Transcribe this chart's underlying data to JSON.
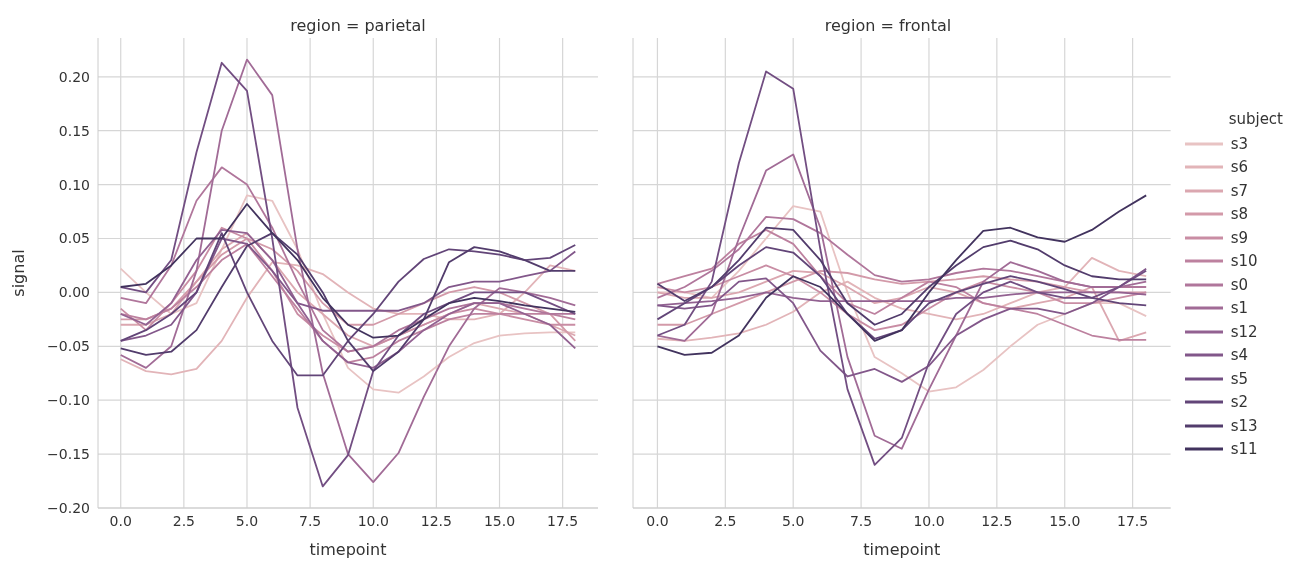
{
  "chart_data": [
    {
      "type": "line",
      "title": "region = parietal",
      "xlabel": "timepoint",
      "ylabel": "signal",
      "grid": true,
      "xlim": [
        -0.9,
        18.9
      ],
      "ylim": [
        -0.2,
        0.236
      ],
      "xticks": [
        {
          "value": 0,
          "label": "0.0"
        },
        2.5,
        {
          "value": 5,
          "label": "5.0"
        },
        7.5,
        {
          "value": 10,
          "label": "10.0"
        },
        12.5,
        {
          "value": 15,
          "label": "15.0"
        },
        17.5
      ],
      "yticks": [
        {
          "value": -0.2,
          "label": "−0.20"
        },
        {
          "value": -0.15,
          "label": "−0.15"
        },
        {
          "value": -0.1,
          "label": "−0.10"
        },
        {
          "value": -0.05,
          "label": "−0.05"
        },
        {
          "value": 0,
          "label": "0.00"
        },
        {
          "value": 0.05,
          "label": "0.05"
        },
        {
          "value": 0.1,
          "label": "0.10"
        },
        {
          "value": 0.15,
          "label": "0.15"
        },
        {
          "value": 0.2,
          "label": "0.20"
        }
      ],
      "x": [
        0,
        1,
        2,
        3,
        4,
        5,
        6,
        7,
        8,
        9,
        10,
        11,
        12,
        13,
        14,
        15,
        16,
        17,
        18
      ],
      "series": [
        {
          "color": "#e8c3c3",
          "values": [
            0.022,
            0.0,
            -0.02,
            -0.01,
            0.04,
            0.09,
            0.085,
            0.04,
            -0.02,
            -0.07,
            -0.09,
            -0.093,
            -0.078,
            -0.06,
            -0.047,
            -0.04,
            -0.038,
            -0.037,
            -0.037
          ]
        },
        {
          "color": "#e2b4b8",
          "values": [
            -0.062,
            -0.073,
            -0.076,
            -0.071,
            -0.045,
            -0.005,
            0.028,
            0.025,
            0.017,
            0.0,
            -0.015,
            -0.02,
            -0.02,
            -0.025,
            -0.025,
            -0.02,
            0.0,
            0.025,
            0.02
          ]
        },
        {
          "color": "#dba7b0",
          "values": [
            -0.03,
            -0.03,
            -0.02,
            0.01,
            0.04,
            0.055,
            0.03,
            0.0,
            -0.02,
            -0.04,
            -0.05,
            -0.04,
            -0.03,
            -0.02,
            -0.01,
            -0.015,
            -0.02,
            -0.03,
            -0.04
          ]
        },
        {
          "color": "#d39aa9",
          "values": [
            -0.025,
            -0.025,
            -0.015,
            0.01,
            0.035,
            0.05,
            0.04,
            0.02,
            -0.01,
            -0.03,
            -0.03,
            -0.02,
            -0.01,
            0.0,
            0.005,
            0.0,
            -0.01,
            -0.02,
            -0.045
          ]
        },
        {
          "color": "#c98da4",
          "values": [
            -0.015,
            -0.035,
            -0.01,
            0.02,
            0.06,
            0.05,
            0.02,
            -0.02,
            -0.04,
            -0.055,
            -0.05,
            -0.04,
            -0.03,
            -0.02,
            -0.015,
            -0.02,
            -0.025,
            -0.03,
            -0.03
          ]
        },
        {
          "color": "#bd819f",
          "values": [
            -0.02,
            -0.025,
            -0.015,
            0.005,
            0.03,
            0.045,
            0.015,
            -0.015,
            -0.045,
            -0.065,
            -0.06,
            -0.045,
            -0.035,
            -0.025,
            -0.02,
            -0.02,
            -0.02,
            -0.02,
            -0.025
          ]
        },
        {
          "color": "#b0769b",
          "values": [
            -0.005,
            -0.01,
            0.025,
            0.085,
            0.116,
            0.1,
            0.06,
            0.01,
            -0.035,
            -0.055,
            -0.05,
            -0.035,
            -0.025,
            -0.015,
            -0.01,
            -0.01,
            -0.015,
            -0.02,
            -0.02
          ]
        },
        {
          "color": "#a16b96",
          "values": [
            -0.058,
            -0.07,
            -0.05,
            0.02,
            0.15,
            0.216,
            0.183,
            0.04,
            -0.075,
            -0.15,
            -0.176,
            -0.149,
            -0.097,
            -0.05,
            -0.015,
            0.004,
            0.0,
            -0.005,
            -0.012
          ]
        },
        {
          "color": "#926191",
          "values": [
            -0.02,
            -0.03,
            -0.01,
            0.03,
            0.058,
            0.055,
            0.03,
            -0.01,
            -0.045,
            -0.065,
            -0.07,
            -0.055,
            -0.035,
            -0.02,
            -0.01,
            -0.01,
            -0.02,
            -0.03,
            -0.052
          ]
        },
        {
          "color": "#82578a",
          "values": [
            -0.045,
            -0.04,
            -0.03,
            0.0,
            0.05,
            0.045,
            0.02,
            -0.01,
            -0.017,
            -0.017,
            -0.017,
            -0.017,
            -0.01,
            0.005,
            0.01,
            0.01,
            0.015,
            0.02,
            0.038
          ]
        },
        {
          "color": "#724e82",
          "values": [
            0.005,
            0.0,
            0.03,
            0.13,
            0.213,
            0.187,
            0.05,
            -0.107,
            -0.18,
            -0.151,
            -0.073,
            -0.04,
            -0.02,
            -0.01,
            0.0,
            0.0,
            0.0,
            -0.01,
            -0.02
          ]
        },
        {
          "color": "#624578",
          "values": [
            -0.045,
            -0.035,
            -0.02,
            0.0,
            0.055,
            0.0,
            -0.045,
            -0.077,
            -0.077,
            -0.045,
            -0.02,
            0.01,
            0.031,
            0.04,
            0.038,
            0.035,
            0.03,
            0.032,
            0.044
          ]
        },
        {
          "color": "#523c6c",
          "values": [
            -0.052,
            -0.058,
            -0.055,
            -0.035,
            0.005,
            0.043,
            0.055,
            0.035,
            0.0,
            -0.045,
            -0.073,
            -0.055,
            -0.025,
            0.028,
            0.042,
            0.038,
            0.03,
            0.02,
            0.02
          ]
        },
        {
          "color": "#42335e",
          "values": [
            0.005,
            0.008,
            0.025,
            0.05,
            0.05,
            0.082,
            0.055,
            0.03,
            -0.005,
            -0.03,
            -0.042,
            -0.04,
            -0.025,
            -0.01,
            -0.005,
            -0.008,
            -0.012,
            -0.015,
            -0.018
          ]
        }
      ]
    },
    {
      "type": "line",
      "title": "region = frontal",
      "xlabel": "timepoint",
      "grid": true,
      "tick_labels": "x",
      "legend": "right",
      "legend_title": "subject",
      "xlim": [
        -0.9,
        18.9
      ],
      "ylim": [
        -0.2,
        0.236
      ],
      "xticks": [
        {
          "value": 0,
          "label": "0.0"
        },
        2.5,
        {
          "value": 5,
          "label": "5.0"
        },
        7.5,
        {
          "value": 10,
          "label": "10.0"
        },
        12.5,
        {
          "value": 15,
          "label": "15.0"
        },
        17.5
      ],
      "yticks": [
        -0.2,
        -0.15,
        -0.1,
        -0.05,
        0,
        0.05,
        0.1,
        0.15,
        0.2
      ],
      "x": [
        0,
        1,
        2,
        3,
        4,
        5,
        6,
        7,
        8,
        9,
        10,
        11,
        12,
        13,
        14,
        15,
        16,
        17,
        18
      ],
      "series": [
        {
          "name": "s3",
          "color": "#e8c3c3",
          "values": [
            0.0,
            0.0,
            -0.005,
            0.02,
            0.05,
            0.08,
            0.075,
            0.0,
            -0.06,
            -0.075,
            -0.092,
            -0.088,
            -0.072,
            -0.05,
            -0.03,
            -0.02,
            -0.01,
            -0.01,
            -0.022
          ]
        },
        {
          "name": "s6",
          "color": "#e2b4b8",
          "values": [
            -0.043,
            -0.045,
            -0.042,
            -0.038,
            -0.03,
            -0.018,
            0.0,
            0.01,
            -0.005,
            -0.015,
            -0.02,
            -0.025,
            -0.02,
            -0.01,
            0.0,
            0.005,
            0.032,
            0.02,
            0.015
          ]
        },
        {
          "name": "s7",
          "color": "#dba7b0",
          "values": [
            0.0,
            -0.005,
            -0.005,
            0.0,
            0.01,
            0.02,
            0.018,
            0.005,
            -0.01,
            -0.005,
            0.005,
            0.0,
            -0.01,
            -0.015,
            -0.01,
            -0.005,
            0.005,
            -0.045,
            -0.037
          ]
        },
        {
          "name": "s8",
          "color": "#d39aa9",
          "values": [
            -0.03,
            -0.03,
            -0.02,
            -0.01,
            0.0,
            0.01,
            0.02,
            0.018,
            0.012,
            0.008,
            0.01,
            0.012,
            0.015,
            0.012,
            0.01,
            0.005,
            0.0,
            0.0,
            0.0
          ]
        },
        {
          "name": "s9",
          "color": "#c98da4",
          "values": [
            0.005,
            0.0,
            0.005,
            0.015,
            0.025,
            0.015,
            0.0,
            -0.02,
            -0.035,
            -0.03,
            -0.015,
            0.0,
            0.01,
            0.005,
            0.0,
            -0.01,
            -0.01,
            -0.005,
            0.0
          ]
        },
        {
          "name": "s10",
          "color": "#bd819f",
          "values": [
            0.008,
            0.015,
            0.022,
            0.045,
            0.058,
            0.045,
            0.015,
            -0.01,
            -0.02,
            -0.005,
            0.01,
            0.005,
            -0.01,
            -0.015,
            -0.02,
            -0.03,
            -0.04,
            -0.044,
            -0.044
          ]
        },
        {
          "name": "s0",
          "color": "#b0769b",
          "values": [
            -0.005,
            0.005,
            0.02,
            0.04,
            0.07,
            0.068,
            0.055,
            0.035,
            0.016,
            0.01,
            0.012,
            0.018,
            0.022,
            0.02,
            0.015,
            0.01,
            0.005,
            0.005,
            0.005
          ]
        },
        {
          "name": "s1",
          "color": "#a16b96",
          "values": [
            -0.04,
            -0.045,
            -0.02,
            0.05,
            0.113,
            0.128,
            0.06,
            -0.06,
            -0.133,
            -0.145,
            -0.09,
            -0.04,
            0.01,
            0.028,
            0.02,
            0.01,
            0.005,
            0.005,
            0.01
          ]
        },
        {
          "name": "s12",
          "color": "#926191",
          "values": [
            -0.012,
            -0.01,
            -0.008,
            -0.005,
            0.0,
            -0.005,
            -0.008,
            -0.008,
            -0.008,
            -0.008,
            -0.008,
            -0.005,
            -0.005,
            -0.002,
            0.0,
            0.0,
            0.0,
            0.0,
            -0.002
          ]
        },
        {
          "name": "s4",
          "color": "#82578a",
          "values": [
            -0.012,
            -0.015,
            -0.012,
            0.01,
            0.013,
            -0.01,
            -0.054,
            -0.078,
            -0.071,
            -0.083,
            -0.068,
            -0.04,
            -0.025,
            -0.015,
            -0.015,
            -0.02,
            -0.01,
            0.005,
            0.022
          ]
        },
        {
          "name": "s5",
          "color": "#724e82",
          "values": [
            -0.04,
            -0.03,
            0.01,
            0.12,
            0.205,
            0.189,
            0.04,
            -0.09,
            -0.16,
            -0.135,
            -0.065,
            -0.02,
            0.0,
            0.01,
            0.0,
            -0.005,
            -0.005,
            0.005,
            0.02
          ]
        },
        {
          "name": "s2",
          "color": "#624578",
          "values": [
            -0.025,
            -0.01,
            0.005,
            0.025,
            0.042,
            0.037,
            0.015,
            -0.02,
            -0.043,
            -0.035,
            -0.01,
            0.0,
            0.008,
            0.015,
            0.01,
            0.003,
            -0.005,
            -0.01,
            -0.012
          ]
        },
        {
          "name": "s13",
          "color": "#523c6c",
          "values": [
            0.008,
            -0.008,
            0.005,
            0.03,
            0.06,
            0.058,
            0.03,
            -0.01,
            -0.03,
            -0.02,
            0.005,
            0.025,
            0.042,
            0.048,
            0.04,
            0.025,
            0.015,
            0.012,
            0.012
          ]
        },
        {
          "name": "s11",
          "color": "#42335e",
          "values": [
            -0.05,
            -0.058,
            -0.056,
            -0.04,
            -0.005,
            0.015,
            0.005,
            -0.02,
            -0.045,
            -0.035,
            0.0,
            0.03,
            0.057,
            0.06,
            0.051,
            0.047,
            0.058,
            0.075,
            0.09
          ]
        }
      ]
    }
  ]
}
